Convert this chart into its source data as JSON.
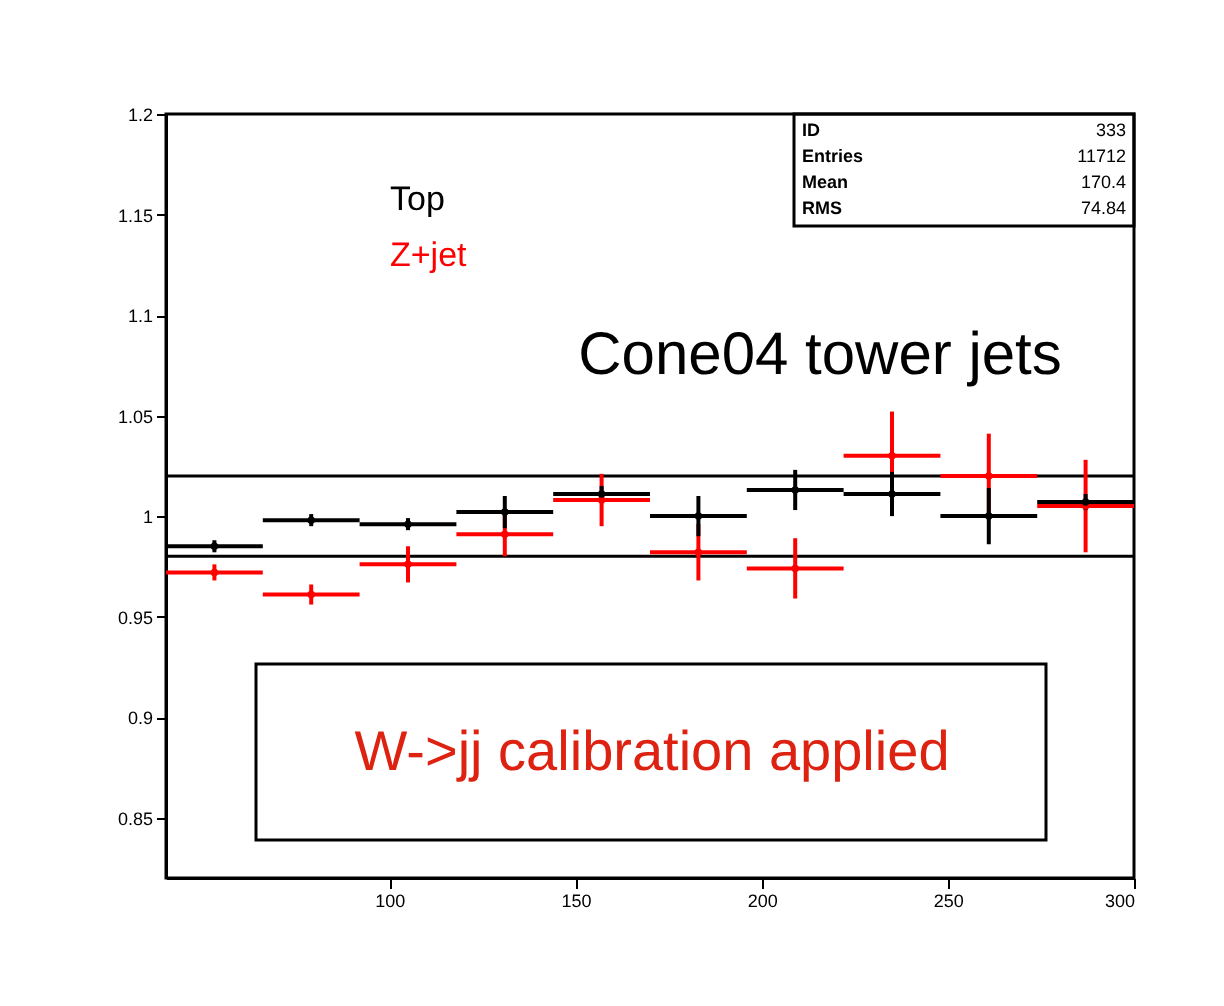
{
  "chart_data": {
    "type": "scatter",
    "marker": "circle",
    "annotations": [
      "ID",
      "333",
      "Entries",
      "11712",
      "Mean",
      "170.4",
      "RMS",
      "74.84",
      "Cone04 tower jets",
      "W->jj calibration applied"
    ],
    "xlim": [
      40,
      300
    ],
    "xticks": [
      100,
      150,
      200,
      250,
      300
    ],
    "ylim": [
      0.82,
      1.2
    ],
    "yticks": [
      0.85,
      0.9,
      0.95,
      1,
      1.05,
      1.1,
      1.15,
      1.2
    ],
    "ref_lines": [
      {
        "axis": "y",
        "value": 1.02,
        "color": "#000000"
      },
      {
        "axis": "y",
        "value": 0.98,
        "color": "#000000"
      }
    ],
    "series": [
      {
        "name": "Top",
        "color": "#000000",
        "x": [
          53,
          79,
          105,
          131,
          157,
          183,
          209,
          235,
          261,
          287
        ],
        "values": [
          0.985,
          0.998,
          0.996,
          1.002,
          1.011,
          1.0,
          1.013,
          1.011,
          1.0,
          1.007
        ],
        "errors": [
          0.003,
          0.003,
          0.003,
          0.008,
          0.004,
          0.01,
          0.01,
          0.011,
          0.014,
          0.004
        ],
        "xerrors": [
          13,
          13,
          13,
          13,
          13,
          13,
          13,
          13,
          13,
          13
        ]
      },
      {
        "name": "Z+jet",
        "color": "#ff0000",
        "x": [
          53,
          79,
          105,
          131,
          157,
          183,
          209,
          235,
          261,
          287
        ],
        "values": [
          0.972,
          0.961,
          0.976,
          0.991,
          1.008,
          0.982,
          0.974,
          1.03,
          1.02,
          1.005
        ],
        "errors": [
          0.004,
          0.005,
          0.009,
          0.011,
          0.013,
          0.014,
          0.015,
          0.022,
          0.021,
          0.023
        ],
        "xerrors": [
          13,
          13,
          13,
          13,
          13,
          13,
          13,
          13,
          13,
          13
        ]
      }
    ]
  }
}
